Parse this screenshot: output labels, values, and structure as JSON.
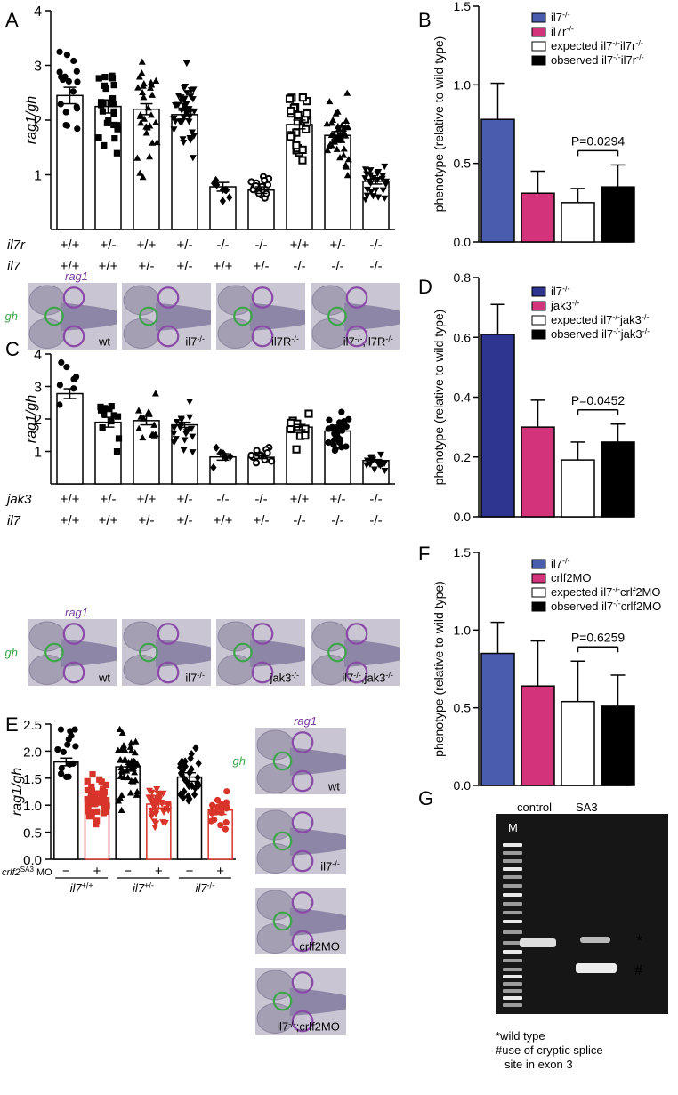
{
  "panel_letters": [
    "A",
    "B",
    "C",
    "D",
    "E",
    "F",
    "G"
  ],
  "chart_data": [
    {
      "panel": "A",
      "type": "bar",
      "ylabel": "rag1/gh",
      "ylim": [
        0,
        4
      ],
      "yticks": [
        "1",
        "2",
        "3",
        "4"
      ],
      "row_labels": [
        "il7r",
        "il7"
      ],
      "rows": [
        [
          "+/+",
          "+/-",
          "+/+",
          "+/-",
          "-/-",
          "-/-",
          "+/+",
          "+/-",
          "-/-"
        ],
        [
          "+/+",
          "+/+",
          "+/-",
          "+/-",
          "+/+",
          "+/-",
          "-/-",
          "-/-",
          "-/-"
        ]
      ],
      "values": [
        2.45,
        2.25,
        2.2,
        2.1,
        0.78,
        0.72,
        1.92,
        1.72,
        0.88
      ],
      "errors": [
        0.15,
        0.12,
        0.1,
        0.08,
        0.08,
        0.06,
        0.08,
        0.07,
        0.05
      ],
      "markers": [
        "circle",
        "square",
        "triangle",
        "tri-down",
        "diamond",
        "ring",
        "ring-sq",
        "triangle",
        "tri-down"
      ]
    },
    {
      "panel": "B",
      "type": "bar",
      "ylabel": "phenotype (relative to wild type)",
      "ylim": [
        0,
        1.5
      ],
      "yticks": [
        "0.0",
        "0.5",
        "1.0",
        "1.5"
      ],
      "series": [
        {
          "name": "il7-/-",
          "value": 0.78,
          "error": 0.23,
          "color": "#4a5cae"
        },
        {
          "name": "il7r-/-",
          "value": 0.31,
          "error": 0.14,
          "color": "#d2337a"
        },
        {
          "name": "expected il7-/-il7r-/-",
          "value": 0.25,
          "error": 0.09,
          "color": "#ffffff"
        },
        {
          "name": "observed il7-/-il7r-/-",
          "value": 0.35,
          "error": 0.14,
          "color": "#000000"
        }
      ],
      "annotation": "P=0.0294"
    },
    {
      "panel": "C",
      "type": "bar",
      "ylabel": "rag1/gh",
      "ylim": [
        0,
        4
      ],
      "yticks": [
        "1",
        "2",
        "3",
        "4"
      ],
      "row_labels": [
        "jak3",
        "il7"
      ],
      "rows": [
        [
          "+/+",
          "+/-",
          "+/+",
          "+/-",
          "-/-",
          "-/-",
          "+/+",
          "+/-",
          "-/-"
        ],
        [
          "+/+",
          "+/+",
          "+/-",
          "+/-",
          "+/+",
          "+/-",
          "-/-",
          "-/-",
          "-/-"
        ]
      ],
      "values": [
        2.78,
        1.9,
        1.95,
        1.82,
        0.83,
        0.82,
        1.75,
        1.63,
        0.72
      ],
      "errors": [
        0.15,
        0.15,
        0.13,
        0.08,
        0.1,
        0.04,
        0.08,
        0.06,
        0.03
      ],
      "markers": [
        "circle",
        "square",
        "triangle",
        "tri-down",
        "diamond",
        "ring",
        "ring-sq",
        "circle",
        "tri-down"
      ]
    },
    {
      "panel": "D",
      "type": "bar",
      "ylabel": "phenotype (relative to wild type)",
      "ylim": [
        0,
        0.8
      ],
      "yticks": [
        "0.0",
        "0.2",
        "0.4",
        "0.6",
        "0.8"
      ],
      "series": [
        {
          "name": "il7-/-",
          "value": 0.61,
          "error": 0.1,
          "color": "#2e3591"
        },
        {
          "name": "jak3-/-",
          "value": 0.3,
          "error": 0.09,
          "color": "#d2337a"
        },
        {
          "name": "expected il7-/-jak3-/-",
          "value": 0.19,
          "error": 0.06,
          "color": "#ffffff"
        },
        {
          "name": "observed il7-/-jak3-/-",
          "value": 0.25,
          "error": 0.06,
          "color": "#000000"
        }
      ],
      "annotation": "P=0.0452"
    },
    {
      "panel": "E",
      "type": "bar",
      "ylabel": "rag1/gh",
      "ylim": [
        0,
        2.5
      ],
      "yticks": [
        "0.0",
        "0.5",
        "1.0",
        "1.5",
        "2.0",
        "2.5"
      ],
      "mo_label": "crlf2SA3 MO",
      "mo_states": [
        "−",
        "+",
        "−",
        "+",
        "−",
        "+"
      ],
      "groups": [
        "il7+/+",
        "il7+/-",
        "il7-/-"
      ],
      "values": [
        1.8,
        1.14,
        1.71,
        1.02,
        1.52,
        0.91
      ],
      "errors": [
        0.07,
        0.08,
        0.08,
        0.07,
        0.08,
        0.08
      ],
      "colors": [
        "#000000",
        "#d8342a",
        "#000000",
        "#d8342a",
        "#000000",
        "#d8342a"
      ],
      "markers": [
        "circle",
        "square",
        "triangle",
        "tri-down",
        "diamond",
        "circle"
      ]
    },
    {
      "panel": "F",
      "type": "bar",
      "ylabel": "phenotype (relative to wild type)",
      "ylim": [
        0,
        1.5
      ],
      "yticks": [
        "0.0",
        "0.5",
        "1.0",
        "1.5"
      ],
      "series": [
        {
          "name": "il7-/-",
          "value": 0.85,
          "error": 0.2,
          "color": "#4a5cae"
        },
        {
          "name": "crlf2MO",
          "value": 0.64,
          "error": 0.29,
          "color": "#d2337a"
        },
        {
          "name": "expected il7-/-crlf2MO",
          "value": 0.54,
          "error": 0.26,
          "color": "#ffffff"
        },
        {
          "name": "observed il7-/-crlf2MO",
          "value": 0.51,
          "error": 0.2,
          "color": "#000000"
        }
      ],
      "annotation": "P=0.6259"
    }
  ],
  "photos": {
    "A": [
      "wt",
      "il7-/-",
      "il7R-/-",
      "il7-/-,il7R-/-"
    ],
    "C": [
      "wt",
      "il7-/-",
      "jak3-/-",
      "il7-/-,jak3-/-"
    ],
    "E": [
      "wt",
      "il7-/-",
      "crlf2MO",
      "il7-/-;crlf2MO"
    ],
    "rag1": "rag1",
    "gh": "gh"
  },
  "gel": {
    "lanes": [
      "M",
      "control",
      "SA3"
    ],
    "marks": [
      "*",
      "#"
    ],
    "legend": [
      "*wild type",
      "#use of cryptic splice",
      "site in exon 3"
    ]
  }
}
